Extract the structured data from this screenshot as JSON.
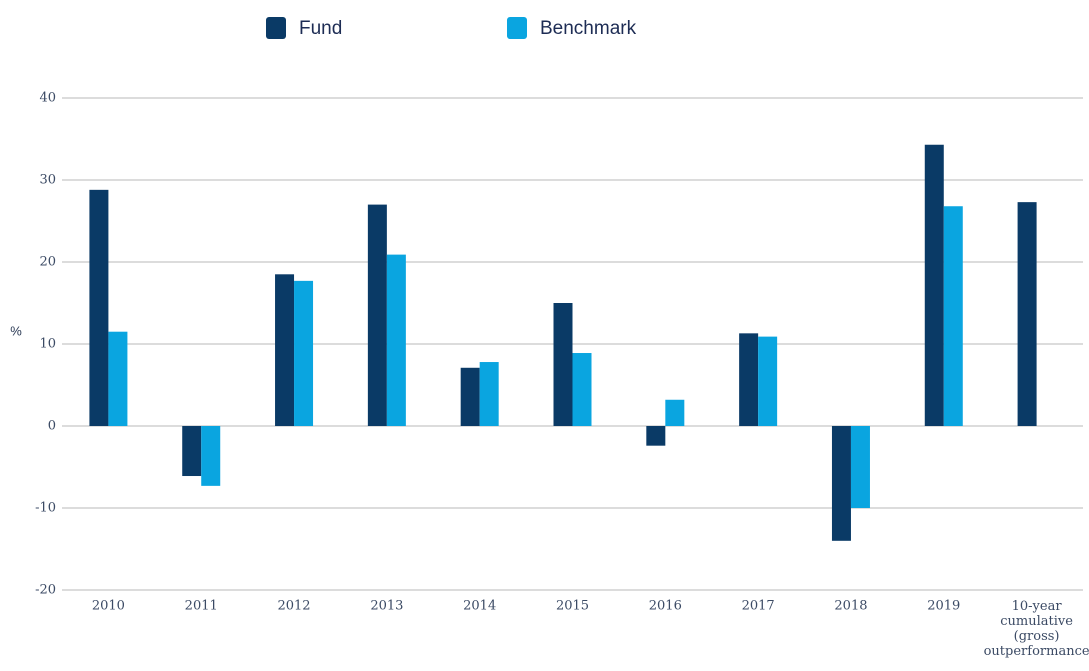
{
  "chart_data": {
    "type": "bar",
    "y_label": "%",
    "categories": [
      "2010",
      "2011",
      "2012",
      "2013",
      "2014",
      "2015",
      "2016",
      "2017",
      "2018",
      "2019",
      "10-year cumulative (gross) outperformance"
    ],
    "series": [
      {
        "name": "Fund",
        "color": "#0a3a66",
        "values": [
          28.8,
          -6.1,
          18.5,
          27.0,
          7.1,
          15.0,
          -2.4,
          11.3,
          -14.0,
          34.3,
          27.3
        ]
      },
      {
        "name": "Benchmark",
        "color": "#0aa5e0",
        "values": [
          11.5,
          -7.3,
          17.7,
          20.9,
          7.8,
          8.9,
          3.2,
          10.9,
          -10.0,
          26.8,
          null
        ]
      }
    ],
    "ylim": [
      -20,
      40
    ],
    "yticks": [
      -20,
      -10,
      0,
      10,
      20,
      30,
      40
    ],
    "grid": true
  }
}
